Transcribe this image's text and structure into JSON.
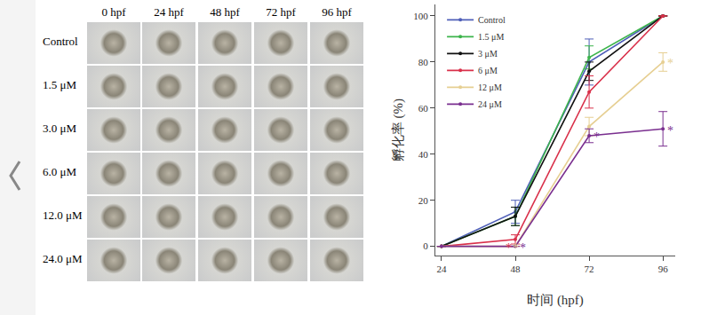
{
  "chart_data": {
    "type": "line",
    "x_label": "时间 (hpf)",
    "y_label": "孵化率 (%)",
    "x": [
      24,
      48,
      72,
      96
    ],
    "xlim": [
      22,
      100
    ],
    "xticks": [
      24,
      48,
      72,
      96
    ],
    "ylim": [
      -4,
      105
    ],
    "yticks": [
      0,
      20,
      40,
      60,
      80,
      100
    ],
    "grid": false,
    "legend": "top-left",
    "marker": "circle",
    "series": [
      {
        "name": "Control",
        "color": "#4f5fb8",
        "values": [
          0,
          15,
          80,
          100
        ],
        "error": [
          0,
          5,
          10,
          0
        ]
      },
      {
        "name": "1.5 μM",
        "color": "#3cb44b",
        "values": [
          0,
          13,
          82,
          100
        ],
        "error": [
          0,
          4,
          5,
          0
        ]
      },
      {
        "name": "3 μM",
        "color": "#111111",
        "values": [
          0,
          13,
          76,
          100
        ],
        "error": [
          0,
          4,
          4,
          0
        ]
      },
      {
        "name": "6 μM",
        "color": "#d9304a",
        "values": [
          0,
          3,
          67,
          100
        ],
        "error": [
          0,
          2,
          7,
          0
        ]
      },
      {
        "name": "12 μM",
        "color": "#e6cf92",
        "values": [
          0,
          0,
          52,
          80
        ],
        "error": [
          0,
          0,
          4,
          4
        ]
      },
      {
        "name": "24 μM",
        "color": "#7a2f8f",
        "values": [
          0,
          0,
          48,
          51
        ],
        "error": [
          0,
          0,
          3,
          7.5
        ]
      }
    ],
    "annotations": [
      {
        "x": 48,
        "y": 0,
        "text": "*",
        "color": "#d9304a"
      },
      {
        "x": 48,
        "y": 0,
        "text": "*",
        "color": "#e6cf92"
      },
      {
        "x": 48,
        "y": 0,
        "text": "*",
        "color": "#7a2f8f"
      },
      {
        "x": 72,
        "y": 48,
        "text": "*",
        "color": "#7a2f8f"
      },
      {
        "x": 96,
        "y": 80,
        "text": "*",
        "color": "#e6cf92"
      },
      {
        "x": 96,
        "y": 51,
        "text": "*",
        "color": "#7a2f8f"
      }
    ]
  },
  "photo_panel": {
    "columns": [
      "0 hpf",
      "24 hpf",
      "48  hpf",
      "72 hpf",
      "96 hpf"
    ],
    "rows": [
      "Control",
      "1.5 μM",
      "3.0 μM",
      "6.0 μM",
      "12.0 μM",
      "24.0 μM"
    ]
  }
}
